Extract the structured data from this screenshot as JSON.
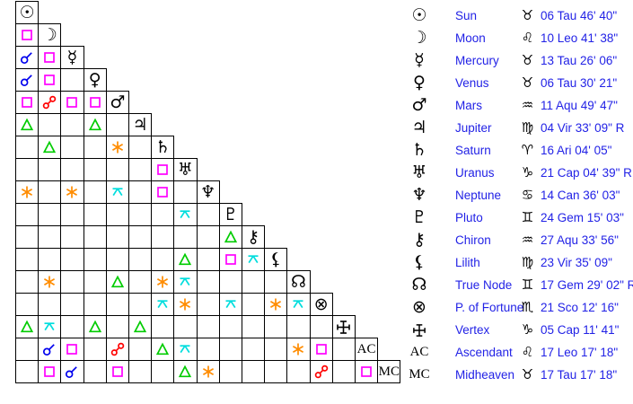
{
  "colors": {
    "conjunction": "#0000ee",
    "square": "#ff00ff",
    "opposition": "#ff0000",
    "trine": "#00cc00",
    "sextile": "#ff8c00",
    "quincunx": "#00dddd",
    "legend_text": "#2222e6",
    "glyph": "#000000"
  },
  "grid": {
    "planets": [
      {
        "id": "sun",
        "glyph": "☉"
      },
      {
        "id": "moon",
        "glyph": "☽"
      },
      {
        "id": "mercury",
        "glyph": "☿"
      },
      {
        "id": "venus",
        "glyph": "♀"
      },
      {
        "id": "mars",
        "glyph": "♂"
      },
      {
        "id": "jupiter",
        "glyph": "♃"
      },
      {
        "id": "saturn",
        "glyph": "♄"
      },
      {
        "id": "uranus",
        "glyph": "♅"
      },
      {
        "id": "neptune",
        "glyph": "♆"
      },
      {
        "id": "pluto",
        "glyph": "♇"
      },
      {
        "id": "chiron",
        "glyph": "⚷"
      },
      {
        "id": "lilith",
        "glyph": "⚸"
      },
      {
        "id": "true-node",
        "glyph": "☊"
      },
      {
        "id": "fortune",
        "glyph": "⊗"
      },
      {
        "id": "vertex",
        "glyph": ""
      },
      {
        "id": "ascendant",
        "glyph": "AC",
        "serif": true
      },
      {
        "id": "midheaven",
        "glyph": "MC",
        "serif": true
      }
    ],
    "aspects": [
      {
        "r": 1,
        "c": 0,
        "type": "square"
      },
      {
        "r": 2,
        "c": 0,
        "type": "conjunction"
      },
      {
        "r": 2,
        "c": 1,
        "type": "square"
      },
      {
        "r": 3,
        "c": 0,
        "type": "conjunction"
      },
      {
        "r": 3,
        "c": 1,
        "type": "square"
      },
      {
        "r": 4,
        "c": 0,
        "type": "square"
      },
      {
        "r": 4,
        "c": 1,
        "type": "opposition"
      },
      {
        "r": 4,
        "c": 2,
        "type": "square"
      },
      {
        "r": 4,
        "c": 3,
        "type": "square"
      },
      {
        "r": 5,
        "c": 0,
        "type": "trine"
      },
      {
        "r": 5,
        "c": 3,
        "type": "trine"
      },
      {
        "r": 6,
        "c": 1,
        "type": "trine"
      },
      {
        "r": 6,
        "c": 4,
        "type": "sextile"
      },
      {
        "r": 7,
        "c": 6,
        "type": "square"
      },
      {
        "r": 8,
        "c": 0,
        "type": "sextile"
      },
      {
        "r": 8,
        "c": 2,
        "type": "sextile"
      },
      {
        "r": 8,
        "c": 4,
        "type": "quincunx"
      },
      {
        "r": 8,
        "c": 6,
        "type": "square"
      },
      {
        "r": 9,
        "c": 7,
        "type": "quincunx"
      },
      {
        "r": 10,
        "c": 9,
        "type": "trine"
      },
      {
        "r": 11,
        "c": 7,
        "type": "trine"
      },
      {
        "r": 11,
        "c": 9,
        "type": "square"
      },
      {
        "r": 11,
        "c": 10,
        "type": "quincunx"
      },
      {
        "r": 12,
        "c": 1,
        "type": "sextile"
      },
      {
        "r": 12,
        "c": 4,
        "type": "trine"
      },
      {
        "r": 12,
        "c": 6,
        "type": "sextile"
      },
      {
        "r": 12,
        "c": 7,
        "type": "quincunx"
      },
      {
        "r": 13,
        "c": 6,
        "type": "quincunx"
      },
      {
        "r": 13,
        "c": 7,
        "type": "sextile"
      },
      {
        "r": 13,
        "c": 9,
        "type": "quincunx"
      },
      {
        "r": 13,
        "c": 11,
        "type": "sextile"
      },
      {
        "r": 13,
        "c": 12,
        "type": "quincunx"
      },
      {
        "r": 14,
        "c": 0,
        "type": "trine"
      },
      {
        "r": 14,
        "c": 1,
        "type": "quincunx"
      },
      {
        "r": 14,
        "c": 3,
        "type": "trine"
      },
      {
        "r": 14,
        "c": 5,
        "type": "trine"
      },
      {
        "r": 15,
        "c": 1,
        "type": "conjunction"
      },
      {
        "r": 15,
        "c": 2,
        "type": "square"
      },
      {
        "r": 15,
        "c": 4,
        "type": "opposition"
      },
      {
        "r": 15,
        "c": 6,
        "type": "trine"
      },
      {
        "r": 15,
        "c": 7,
        "type": "quincunx"
      },
      {
        "r": 15,
        "c": 12,
        "type": "sextile"
      },
      {
        "r": 15,
        "c": 13,
        "type": "square"
      },
      {
        "r": 16,
        "c": 1,
        "type": "square"
      },
      {
        "r": 16,
        "c": 2,
        "type": "conjunction"
      },
      {
        "r": 16,
        "c": 4,
        "type": "square"
      },
      {
        "r": 16,
        "c": 7,
        "type": "trine"
      },
      {
        "r": 16,
        "c": 8,
        "type": "sextile"
      },
      {
        "r": 16,
        "c": 13,
        "type": "opposition"
      },
      {
        "r": 16,
        "c": 15,
        "type": "square"
      }
    ]
  },
  "legend": {
    "rows": [
      {
        "glyph": "☉",
        "name": "Sun",
        "sign": "♉",
        "position": "06 Tau 46' 40\""
      },
      {
        "glyph": "☽",
        "name": "Moon",
        "sign": "♌",
        "position": "10 Leo 41' 38\""
      },
      {
        "glyph": "☿",
        "name": "Mercury",
        "sign": "♉",
        "position": "13 Tau 26' 06\""
      },
      {
        "glyph": "♀",
        "name": "Venus",
        "sign": "♉",
        "position": "06 Tau 30' 21\""
      },
      {
        "glyph": "♂",
        "name": "Mars",
        "sign": "♒",
        "position": "11 Aqu 49' 47\""
      },
      {
        "glyph": "♃",
        "name": "Jupiter",
        "sign": "♍",
        "position": "04 Vir 33' 09\" R"
      },
      {
        "glyph": "♄",
        "name": "Saturn",
        "sign": "♈",
        "position": "16 Ari 04' 05\""
      },
      {
        "glyph": "♅",
        "name": "Uranus",
        "sign": "♑",
        "position": "21 Cap 04' 39\" R"
      },
      {
        "glyph": "♆",
        "name": "Neptune",
        "sign": "♋",
        "position": "14 Can 36' 03\""
      },
      {
        "glyph": "♇",
        "name": "Pluto",
        "sign": "♊",
        "position": "24 Gem 15' 03\""
      },
      {
        "glyph": "⚷",
        "name": "Chiron",
        "sign": "♒",
        "position": "27 Aqu 33' 56\""
      },
      {
        "glyph": "⚸",
        "name": "Lilith",
        "sign": "♍",
        "position": "23 Vir 35' 09\""
      },
      {
        "glyph": "☊",
        "name": "True Node",
        "sign": "♊",
        "position": "17 Gem 29' 02\" R"
      },
      {
        "glyph": "⊗",
        "name": "P. of Fortune",
        "sign": "♏",
        "position": "21 Sco 12' 16\""
      },
      {
        "glyph": "",
        "name": "Vertex",
        "sign": "♑",
        "position": "05 Cap 11' 41\""
      },
      {
        "glyph": "AC",
        "name": "Ascendant",
        "sign": "♌",
        "position": "17 Leo 17' 18\""
      },
      {
        "glyph": "MC",
        "name": "Midheaven",
        "sign": "♉",
        "position": "17 Tau 17' 18\""
      }
    ]
  }
}
